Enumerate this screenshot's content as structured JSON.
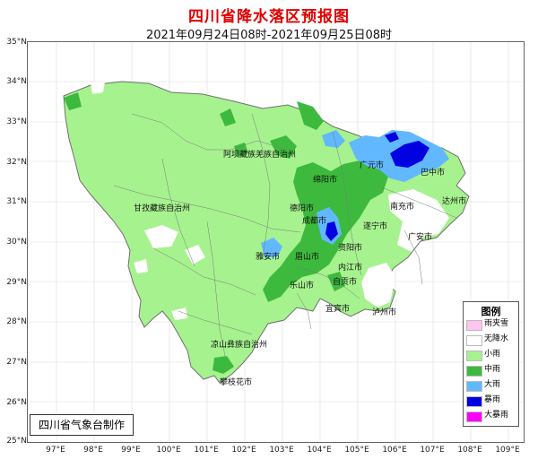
{
  "title": "四川省降水落区预报图",
  "subtitle": "2021年09月24日08时-2021年09月25日08时",
  "credit": "四川省气象台制作",
  "lat_labels": [
    "35°N",
    "34°N",
    "33°N",
    "32°N",
    "31°N",
    "30°N",
    "29°N",
    "28°N",
    "27°N",
    "26°N",
    "25°N"
  ],
  "lon_labels": [
    "97°E",
    "98°E",
    "99°E",
    "100°E",
    "101°E",
    "102°E",
    "103°E",
    "104°E",
    "105°E",
    "106°E",
    "107°E",
    "108°E",
    "109°E"
  ],
  "legend": {
    "title": "图例",
    "items": [
      {
        "label": "雨夹雪",
        "color": "#ffc4f0"
      },
      {
        "label": "无降水",
        "color": "#ffffff"
      },
      {
        "label": "小雨",
        "color": "#a6f28f"
      },
      {
        "label": "中雨",
        "color": "#3dba3d"
      },
      {
        "label": "大雨",
        "color": "#61b8ff"
      },
      {
        "label": "暴雨",
        "color": "#0000e1"
      },
      {
        "label": "大暴雨",
        "color": "#fa00fa"
      }
    ]
  },
  "places": [
    {
      "name": "阿坝藏族羌族自治州"
    },
    {
      "name": "甘孜藏族自治州"
    },
    {
      "name": "凉山彝族自治州"
    },
    {
      "name": "攀枝花市"
    },
    {
      "name": "绵阳市"
    },
    {
      "name": "广元市"
    },
    {
      "name": "巴中市"
    },
    {
      "name": "达州市"
    },
    {
      "name": "南充市"
    },
    {
      "name": "德阳市"
    },
    {
      "name": "成都市"
    },
    {
      "name": "遂宁市"
    },
    {
      "name": "广安市"
    },
    {
      "name": "资阳市"
    },
    {
      "name": "雅安市"
    },
    {
      "name": "眉山市"
    },
    {
      "name": "内江市"
    },
    {
      "name": "乐山市"
    },
    {
      "name": "自贡市"
    },
    {
      "name": "宜宾市"
    },
    {
      "name": "泸州市"
    }
  ]
}
